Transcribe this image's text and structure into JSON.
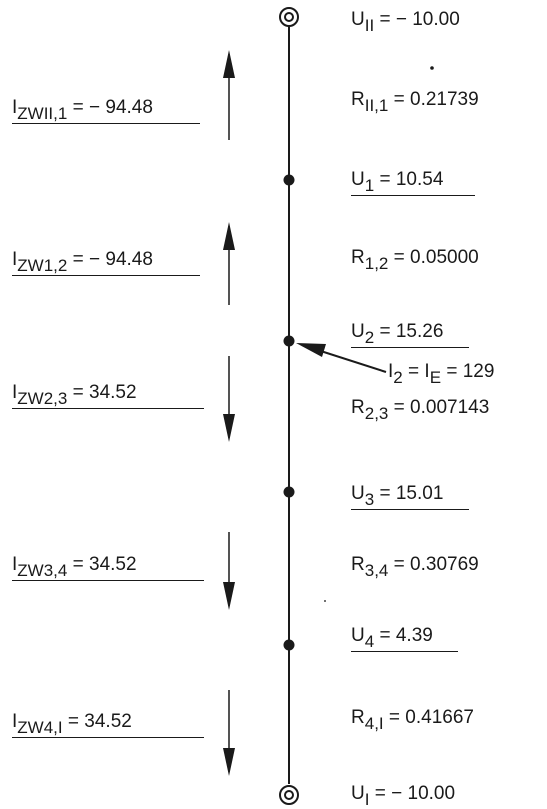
{
  "bus_voltages": [
    {
      "sym": "U",
      "sub": "II",
      "rhs": "= − 10.00"
    },
    {
      "sym": "U",
      "sub": "1",
      "rhs": "= 10.54"
    },
    {
      "sym": "U",
      "sub": "2",
      "rhs": "= 15.26"
    },
    {
      "sym": "U",
      "sub": "3",
      "rhs": "= 15.01"
    },
    {
      "sym": "U",
      "sub": "4",
      "rhs": "= 4.39"
    },
    {
      "sym": "U",
      "sub": "I",
      "rhs": "= − 10.00"
    }
  ],
  "resistances": [
    {
      "sym": "R",
      "sub": "II,1",
      "rhs": "= 0.21739"
    },
    {
      "sym": "R",
      "sub": "1,2",
      "rhs": "= 0.05000"
    },
    {
      "sym": "R",
      "sub": "2,3",
      "rhs": "= 0.007143"
    },
    {
      "sym": "R",
      "sub": "3,4",
      "rhs": "= 0.30769"
    },
    {
      "sym": "R",
      "sub": "4,I",
      "rhs": "= 0.41667"
    }
  ],
  "branch_currents": [
    {
      "sym": "I",
      "sub": "ZWII,1",
      "rhs": "= − 94.48",
      "direction": "up"
    },
    {
      "sym": "I",
      "sub": "ZW1,2",
      "rhs": "= − 94.48",
      "direction": "up"
    },
    {
      "sym": "I",
      "sub": "ZW2,3",
      "rhs": "= 34.52",
      "direction": "down"
    },
    {
      "sym": "I",
      "sub": "ZW3,4",
      "rhs": "= 34.52",
      "direction": "down"
    },
    {
      "sym": "I",
      "sub": "ZW4,I",
      "rhs": "= 34.52",
      "direction": "down"
    }
  ],
  "feed_in": {
    "sym1": "I",
    "sub1": "2",
    "eq": "=",
    "sym2": "I",
    "sub2": "E",
    "rhs": "= 129"
  }
}
